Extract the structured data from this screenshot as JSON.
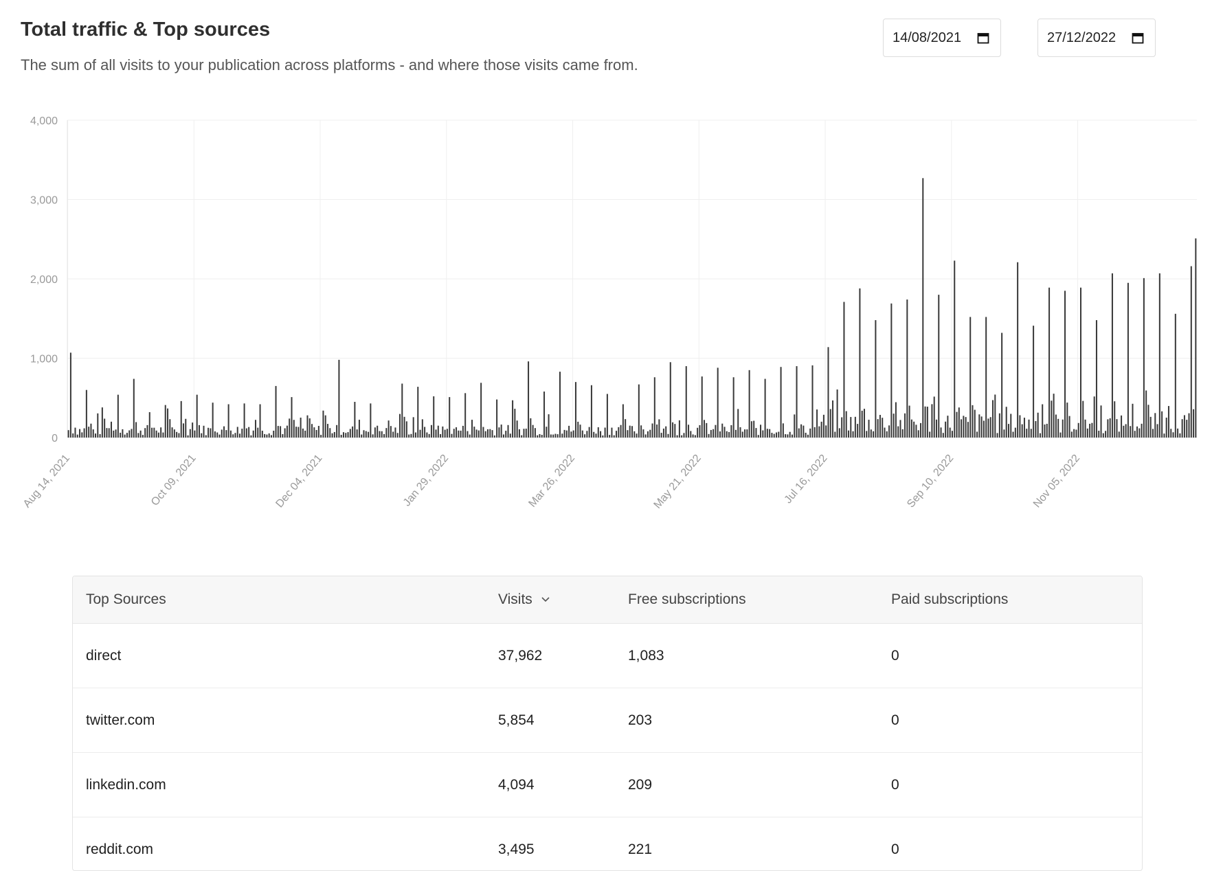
{
  "header": {
    "title": "Total traffic & Top sources",
    "subtitle": "The sum of all visits to your publication across platforms - and where those visits came from."
  },
  "date_range": {
    "from": "14/08/2021",
    "to": "27/12/2022",
    "icon": "calendar-icon"
  },
  "table": {
    "columns": [
      "Top Sources",
      "Visits",
      "Free subscriptions",
      "Paid subscriptions"
    ],
    "sort_icon": "chevron-down-icon",
    "rows": [
      {
        "source": "direct",
        "visits": "37,962",
        "free": "1,083",
        "paid": "0"
      },
      {
        "source": "twitter.com",
        "visits": "5,854",
        "free": "203",
        "paid": "0"
      },
      {
        "source": "linkedin.com",
        "visits": "4,094",
        "free": "209",
        "paid": "0"
      },
      {
        "source": "reddit.com",
        "visits": "3,495",
        "free": "221",
        "paid": "0"
      }
    ]
  },
  "chart_data": {
    "type": "bar",
    "title": "",
    "xlabel": "",
    "ylabel": "",
    "ylim": [
      0,
      4000
    ],
    "yticks": [
      "0",
      "1,000",
      "2,000",
      "3,000",
      "4,000"
    ],
    "xticks": [
      "Aug 14, 2021",
      "Oct 09, 2021",
      "Dec 04, 2021",
      "Jan 29, 2022",
      "Mar 26, 2022",
      "May 21, 2022",
      "Jul 16, 2022",
      "Sep 10, 2022",
      "Nov 05, 2022"
    ],
    "start_date": "2021-08-14",
    "grid": true,
    "bar_color": "#3a3a3a",
    "weekly_peaks": [
      {
        "date": "2021-08-15",
        "value": 1070
      },
      {
        "date": "2021-08-22",
        "value": 600
      },
      {
        "date": "2021-08-29",
        "value": 380
      },
      {
        "date": "2021-09-05",
        "value": 540
      },
      {
        "date": "2021-09-12",
        "value": 740
      },
      {
        "date": "2021-09-19",
        "value": 320
      },
      {
        "date": "2021-09-26",
        "value": 410
      },
      {
        "date": "2021-10-03",
        "value": 460
      },
      {
        "date": "2021-10-10",
        "value": 540
      },
      {
        "date": "2021-10-17",
        "value": 440
      },
      {
        "date": "2021-10-24",
        "value": 420
      },
      {
        "date": "2021-10-31",
        "value": 430
      },
      {
        "date": "2021-11-07",
        "value": 420
      },
      {
        "date": "2021-11-14",
        "value": 650
      },
      {
        "date": "2021-11-21",
        "value": 510
      },
      {
        "date": "2021-11-28",
        "value": 280
      },
      {
        "date": "2021-12-05",
        "value": 340
      },
      {
        "date": "2021-12-12",
        "value": 980
      },
      {
        "date": "2021-12-19",
        "value": 450
      },
      {
        "date": "2021-12-26",
        "value": 430
      },
      {
        "date": "2022-01-02",
        "value": 120
      },
      {
        "date": "2022-01-09",
        "value": 680
      },
      {
        "date": "2022-01-16",
        "value": 640
      },
      {
        "date": "2022-01-23",
        "value": 520
      },
      {
        "date": "2022-01-30",
        "value": 510
      },
      {
        "date": "2022-02-06",
        "value": 560
      },
      {
        "date": "2022-02-13",
        "value": 690
      },
      {
        "date": "2022-02-20",
        "value": 480
      },
      {
        "date": "2022-02-27",
        "value": 470
      },
      {
        "date": "2022-03-06",
        "value": 960
      },
      {
        "date": "2022-03-13",
        "value": 580
      },
      {
        "date": "2022-03-20",
        "value": 830
      },
      {
        "date": "2022-03-27",
        "value": 700
      },
      {
        "date": "2022-04-03",
        "value": 660
      },
      {
        "date": "2022-04-10",
        "value": 550
      },
      {
        "date": "2022-04-17",
        "value": 420
      },
      {
        "date": "2022-04-24",
        "value": 670
      },
      {
        "date": "2022-05-01",
        "value": 760
      },
      {
        "date": "2022-05-08",
        "value": 950
      },
      {
        "date": "2022-05-15",
        "value": 900
      },
      {
        "date": "2022-05-22",
        "value": 770
      },
      {
        "date": "2022-05-29",
        "value": 880
      },
      {
        "date": "2022-06-05",
        "value": 760
      },
      {
        "date": "2022-06-12",
        "value": 850
      },
      {
        "date": "2022-06-19",
        "value": 740
      },
      {
        "date": "2022-06-26",
        "value": 890
      },
      {
        "date": "2022-07-03",
        "value": 900
      },
      {
        "date": "2022-07-10",
        "value": 910
      },
      {
        "date": "2022-07-17",
        "value": 1140
      },
      {
        "date": "2022-07-24",
        "value": 1710
      },
      {
        "date": "2022-07-31",
        "value": 1880
      },
      {
        "date": "2022-08-07",
        "value": 1480
      },
      {
        "date": "2022-08-14",
        "value": 1690
      },
      {
        "date": "2022-08-21",
        "value": 1740
      },
      {
        "date": "2022-08-28",
        "value": 3270
      },
      {
        "date": "2022-09-04",
        "value": 1800
      },
      {
        "date": "2022-09-11",
        "value": 2230
      },
      {
        "date": "2022-09-18",
        "value": 1520
      },
      {
        "date": "2022-09-25",
        "value": 1520
      },
      {
        "date": "2022-10-02",
        "value": 1320
      },
      {
        "date": "2022-10-09",
        "value": 2210
      },
      {
        "date": "2022-10-16",
        "value": 1410
      },
      {
        "date": "2022-10-23",
        "value": 1890
      },
      {
        "date": "2022-10-30",
        "value": 1850
      },
      {
        "date": "2022-11-06",
        "value": 1890
      },
      {
        "date": "2022-11-13",
        "value": 1480
      },
      {
        "date": "2022-11-20",
        "value": 2070
      },
      {
        "date": "2022-11-27",
        "value": 1950
      },
      {
        "date": "2022-12-04",
        "value": 2010
      },
      {
        "date": "2022-12-11",
        "value": 2070
      },
      {
        "date": "2022-12-18",
        "value": 1560
      },
      {
        "date": "2022-12-25",
        "value": 2160
      },
      {
        "date": "2022-12-27",
        "value": 2510
      }
    ],
    "baseline_note": "Daily bars between peaks range roughly 30-600 visits"
  }
}
